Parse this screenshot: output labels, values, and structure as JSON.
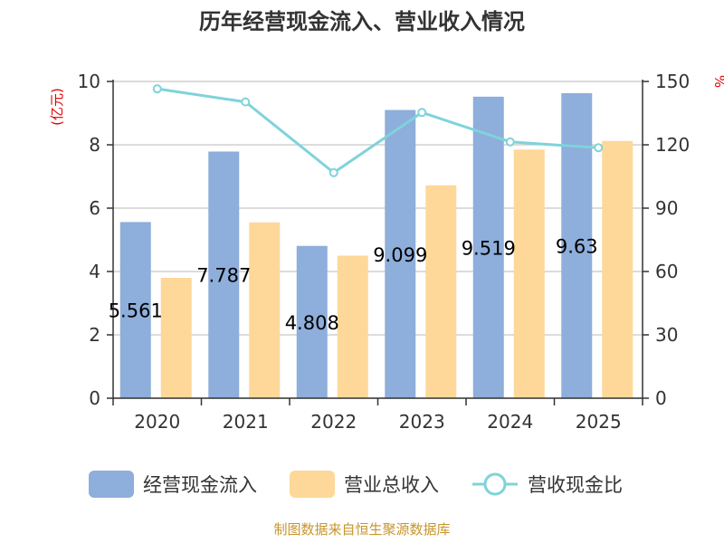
{
  "chart_data": {
    "type": "bar",
    "title": "历年经营现金流入、营业收入情况",
    "categories": [
      "2020",
      "2021",
      "2022",
      "2023",
      "2024",
      "2025"
    ],
    "series": [
      {
        "name": "经营现金流入",
        "type": "bar",
        "axis": "left",
        "color": "#8eaedb",
        "values": [
          5.561,
          7.787,
          4.808,
          9.099,
          9.519,
          9.63
        ],
        "labels": [
          "5.561",
          "7.787",
          "4.808",
          "9.099",
          "9.519",
          "9.63"
        ]
      },
      {
        "name": "营业总收入",
        "type": "bar",
        "axis": "left",
        "color": "#fdd898",
        "values": [
          3.8,
          5.55,
          4.5,
          6.72,
          7.85,
          8.12
        ]
      },
      {
        "name": "营收现金比",
        "type": "line",
        "axis": "right",
        "color": "#7fd3da",
        "values": [
          146.5,
          140.3,
          106.8,
          135.3,
          121.4,
          118.6
        ]
      }
    ],
    "y_left": {
      "label": "(亿元)",
      "ylim": [
        0,
        10
      ],
      "ticks": [
        "0",
        "2",
        "4",
        "6",
        "8",
        "10"
      ]
    },
    "y_right": {
      "label": "%",
      "ylim": [
        0,
        150
      ],
      "ticks": [
        "0",
        "30",
        "60",
        "90",
        "120",
        "150"
      ]
    },
    "grid": true,
    "legend": "bottom"
  },
  "source": "制图数据来自恒生聚源数据库"
}
